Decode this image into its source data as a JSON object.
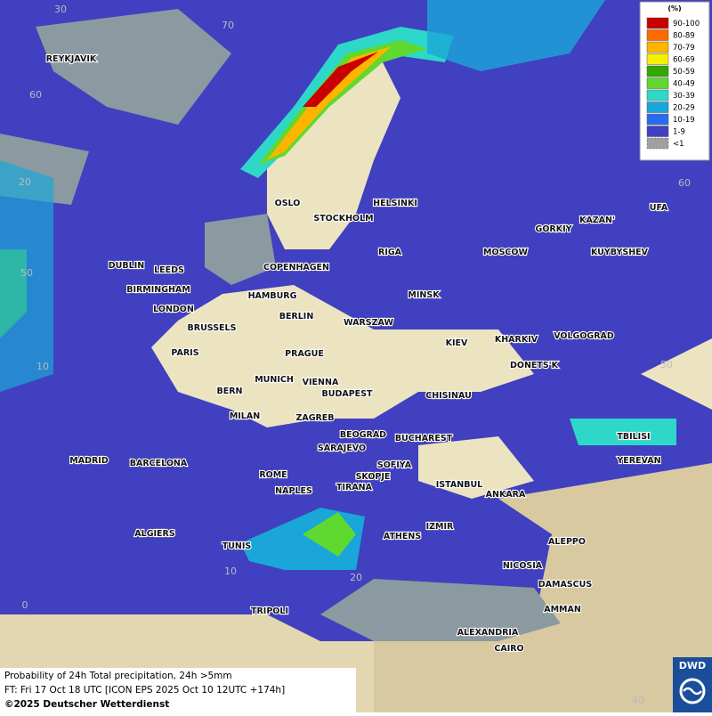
{
  "map": {
    "grid_labels": [
      "30",
      "70",
      "60",
      "20",
      "50",
      "10",
      "0",
      "10",
      "20",
      "40",
      "50",
      "60"
    ],
    "cities": [
      "REYKJAVIK",
      "OSLO",
      "STOCKHOLM",
      "HELSINKI",
      "DUBLIN",
      "LEEDS",
      "BIRMINGHAM",
      "LONDON",
      "COPENHAGEN",
      "RIGA",
      "MOSCOW",
      "GORKIY",
      "KAZAN'",
      "UFA",
      "KUYBYSHEV",
      "HAMBURG",
      "MINSK",
      "BERLIN",
      "BRUSSELS",
      "WARSZAW",
      "KIEV",
      "KHARKIV",
      "VOLGOGRAD",
      "PARIS",
      "PRAGUE",
      "DONETS'K",
      "MUNICH",
      "VIENNA",
      "BERN",
      "BUDAPEST",
      "CHISINAU",
      "MILAN",
      "ZAGREB",
      "BEOGRAD",
      "BUCHAREST",
      "TBILISI",
      "SARAJEVO",
      "MADRID",
      "BARCELONA",
      "SOFIYA",
      "YEREVAN",
      "ROME",
      "SKOPJE",
      "NAPLES",
      "TIRANA",
      "ISTANBUL",
      "ANKARA",
      "ALGIERS",
      "IZMIR",
      "ATHENS",
      "ALEPPO",
      "TUNIS",
      "NICOSIA",
      "DAMASCUS",
      "TRIPOLI",
      "AMMAN",
      "ALEXANDRIA",
      "CAIRO"
    ]
  },
  "legend": {
    "title": "(%)",
    "entries": [
      {
        "label": "90-100",
        "color": "#c80000"
      },
      {
        "label": "80-89",
        "color": "#ff6a00"
      },
      {
        "label": "70-79",
        "color": "#ffb400"
      },
      {
        "label": "60-69",
        "color": "#f5f000"
      },
      {
        "label": "50-59",
        "color": "#2fa800"
      },
      {
        "label": "40-49",
        "color": "#5fd92f"
      },
      {
        "label": "30-39",
        "color": "#2ed8c8"
      },
      {
        "label": "20-29",
        "color": "#1aa6d8"
      },
      {
        "label": "10-19",
        "color": "#2a6cf0"
      },
      {
        "label": "1-9",
        "color": "#4040c0"
      },
      {
        "label": "<1",
        "color": "#a0a0a0"
      }
    ]
  },
  "footer": {
    "lines": [
      "Probability of 24h Total precipitation, 24h >5mm",
      "FT: Fri 17 Oct 18 UTC [ICON EPS 2025 Oct 10 12UTC +174h]",
      "©2025 Deutscher Wetterdienst"
    ]
  },
  "logo": "DWD"
}
